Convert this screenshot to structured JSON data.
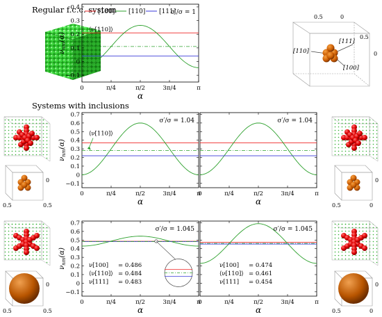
{
  "titles": {
    "regular": "Regular f.c.c. system",
    "inclusions": "Systems with inclusions"
  },
  "colors": {
    "line_100": "#ef2929",
    "line_110": "#2ca02c",
    "line_111": "#3a3ad8",
    "line_110_avg": "#2ca02c",
    "sphere_small": "#c85a00",
    "fcc_green": "#22b022",
    "inclusion_red": "#e00000",
    "sphere_large": "#b85500"
  },
  "icons": [
    "fcc-cube-image",
    "crystal-directions-image",
    "inclusion-structure-image",
    "orange-sphere-image"
  ],
  "legend": {
    "l100": "[100]",
    "l110": "[110]",
    "l111": "[111]"
  },
  "cube3d": {
    "t05a": "0.5",
    "t0a": "0",
    "t05b": "0.5",
    "t0b": "0",
    "d110": "[110]",
    "d111": "[111]",
    "d100": "[100]"
  },
  "small3d": {
    "top0": "0",
    "bot05": "0.5",
    "botM05": "0.5",
    "bot0": "0",
    "side05": "0.5"
  },
  "chart_data": [
    {
      "type": "line",
      "panel": "top",
      "xlabel": "α",
      "ylabel": "ν_nm(α)",
      "xlim": [
        0,
        3.14159
      ],
      "ylim": [
        -0.15,
        0.42
      ],
      "x_ticks": [
        "0",
        "π/4",
        "π/2",
        "3π/4",
        "π"
      ],
      "y_ticks": [
        "−0.1",
        "0",
        "0.1",
        "0.2",
        "0.3",
        "0.4"
      ],
      "sigma_label": "σ′/σ = 1",
      "annotation": "⟨ν[110]⟩",
      "series": [
        {
          "name": "[100]",
          "kind": "const",
          "value": 0.21
        },
        {
          "name": "[110]",
          "kind": "cos2",
          "min": -0.045,
          "max": 0.265
        },
        {
          "name": "[111]",
          "kind": "const",
          "value": 0.04
        },
        {
          "kind": "dashdot",
          "value": 0.11
        }
      ]
    },
    {
      "type": "line",
      "panel": "mid-left",
      "xlabel": "α",
      "ylabel": "ν_nm(α)",
      "xlim": [
        0,
        3.14159
      ],
      "ylim": [
        -0.15,
        0.72
      ],
      "x_ticks": [
        "0",
        "π/4",
        "π/2",
        "3π/4",
        "π"
      ],
      "y_ticks": [
        "−0.1",
        "0",
        "0.1",
        "0.2",
        "0.3",
        "0.4",
        "0.5",
        "0.6",
        "0.7"
      ],
      "sigma_label": "σ′/σ = 1.04",
      "annotation": "⟨ν[110]⟩",
      "series": [
        {
          "name": "[100]",
          "kind": "const",
          "value": 0.37
        },
        {
          "name": "[110]",
          "kind": "cos2",
          "min": 0.0,
          "max": 0.6
        },
        {
          "name": "[111]",
          "kind": "const",
          "value": 0.22
        },
        {
          "kind": "dashdot",
          "value": 0.28
        }
      ]
    },
    {
      "type": "line",
      "panel": "mid-right",
      "xlabel": "α",
      "xlim": [
        0,
        3.14159
      ],
      "ylim": [
        -0.15,
        0.72
      ],
      "x_ticks": [
        "0",
        "π/4",
        "π/2",
        "3π/4",
        "π"
      ],
      "sigma_label": "σ′/σ = 1.04",
      "series": [
        {
          "name": "[100]",
          "kind": "const",
          "value": 0.37
        },
        {
          "name": "[110]",
          "kind": "cos2",
          "min": 0.0,
          "max": 0.6
        },
        {
          "name": "[111]",
          "kind": "const",
          "value": 0.22
        },
        {
          "kind": "dashdot",
          "value": 0.28
        }
      ]
    },
    {
      "type": "line",
      "panel": "bottom-left",
      "xlabel": "α",
      "ylabel": "ν_nm(α)",
      "xlim": [
        0,
        3.14159
      ],
      "ylim": [
        -0.15,
        0.72
      ],
      "x_ticks": [
        "0",
        "π/4",
        "π/2",
        "3π/4",
        "π"
      ],
      "y_ticks": [
        "−0.1",
        "0",
        "0.1",
        "0.2",
        "0.3",
        "0.4",
        "0.5",
        "0.6",
        "0.7"
      ],
      "sigma_label": "σ′/σ = 1.045",
      "values_text": [
        {
          "label": "ν[100]",
          "value": "= 0.486"
        },
        {
          "label": "⟨ν[110]⟩",
          "value": "= 0.484"
        },
        {
          "label": "ν[111]",
          "value": "= 0.483"
        }
      ],
      "series": [
        {
          "name": "[100]",
          "kind": "const",
          "value": 0.486
        },
        {
          "name": "[110]",
          "kind": "cos2",
          "min": 0.43,
          "max": 0.545
        },
        {
          "name": "[111]",
          "kind": "const",
          "value": 0.483
        },
        {
          "kind": "dashdot",
          "value": 0.484
        }
      ]
    },
    {
      "type": "line",
      "panel": "bottom-right",
      "xlabel": "α",
      "xlim": [
        0,
        3.14159
      ],
      "ylim": [
        -0.15,
        0.72
      ],
      "x_ticks": [
        "0",
        "π/4",
        "π/2",
        "3π/4",
        "π"
      ],
      "sigma_label": "σ′/σ = 1.045",
      "values_text": [
        {
          "label": "ν[100]",
          "value": "= 0.474"
        },
        {
          "label": "⟨ν[110]⟩",
          "value": "= 0.461"
        },
        {
          "label": "ν[111]",
          "value": "= 0.454"
        }
      ],
      "series": [
        {
          "name": "[100]",
          "kind": "const",
          "value": 0.474
        },
        {
          "name": "[110]",
          "kind": "cos2",
          "min": 0.23,
          "max": 0.69
        },
        {
          "name": "[111]",
          "kind": "const",
          "value": 0.454
        },
        {
          "kind": "dashdot",
          "value": 0.461
        }
      ]
    }
  ]
}
